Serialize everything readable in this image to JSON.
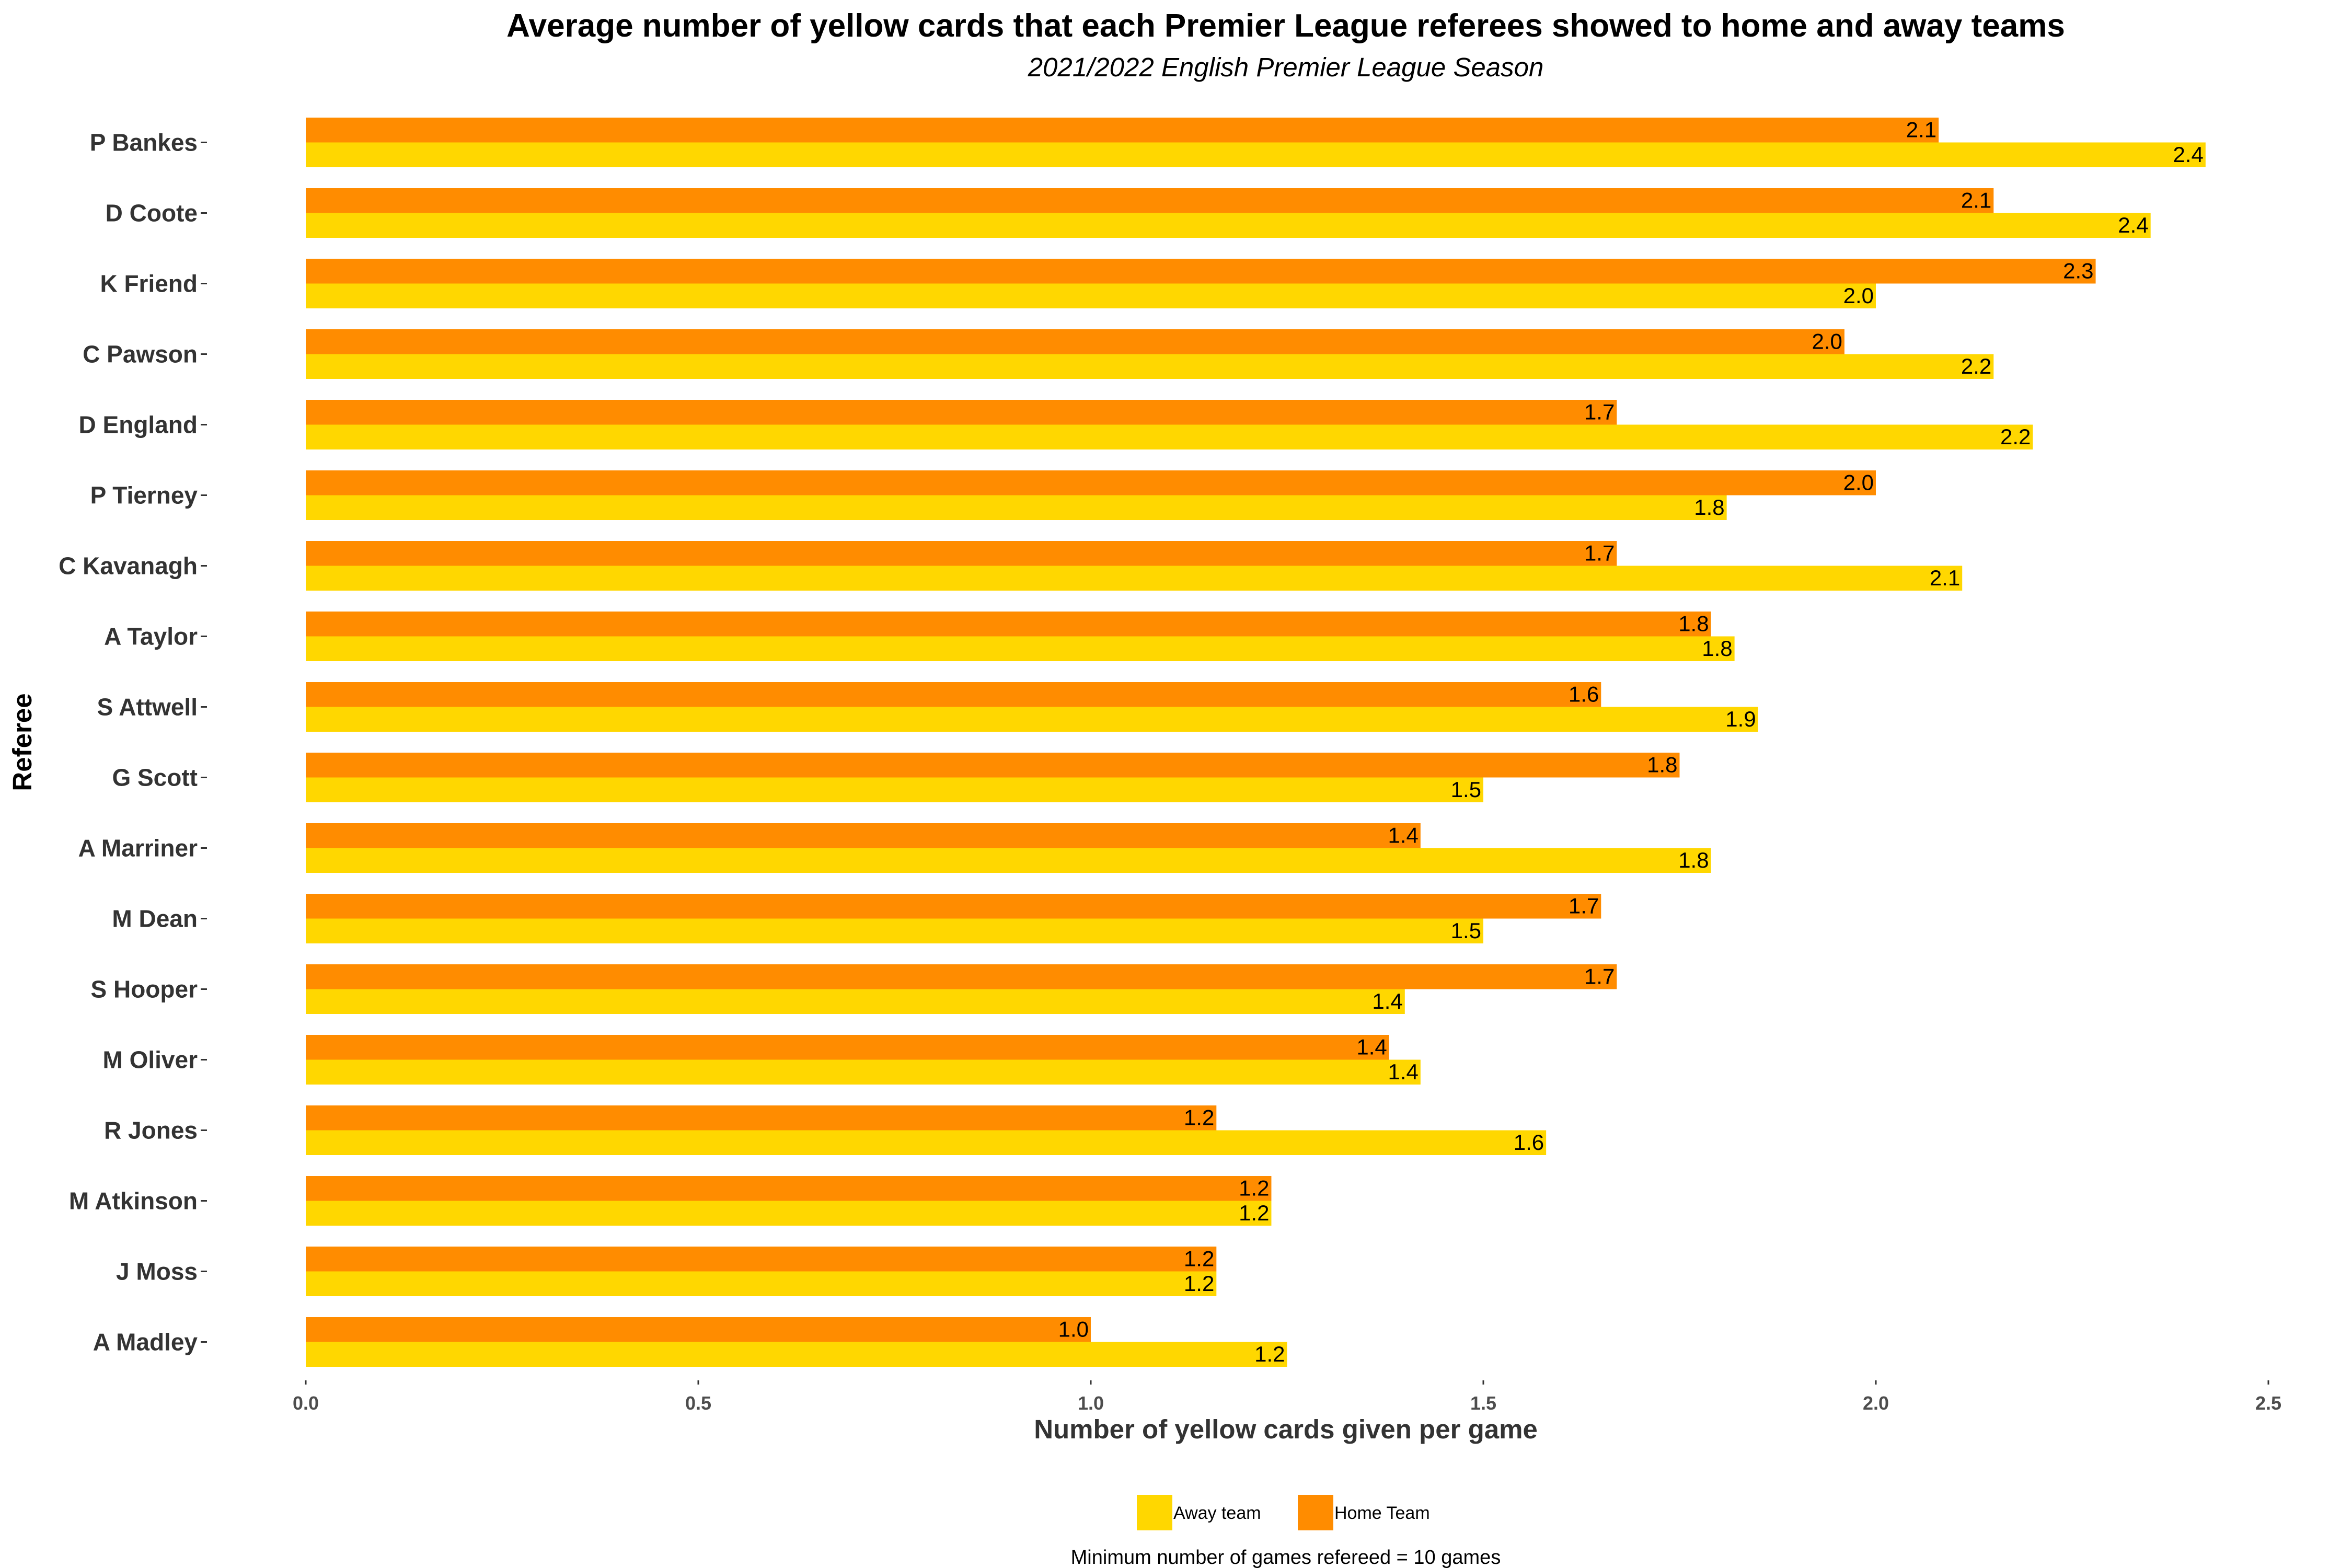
{
  "chart_data": {
    "type": "bar",
    "orientation": "horizontal",
    "title": "Average number of yellow cards that each Premier League referees showed to home and away teams",
    "subtitle": "2021/2022 English Premier League Season",
    "xlabel": "Number of yellow cards given per game",
    "ylabel": "Referee",
    "xlim": [
      0,
      2.5
    ],
    "x_ticks": [
      "0.0",
      "0.5",
      "1.0",
      "1.5",
      "2.0",
      "2.5"
    ],
    "x_tick_values": [
      0,
      0.5,
      1.0,
      1.5,
      2.0,
      2.5
    ],
    "grid": false,
    "legend_position": "bottom",
    "categories": [
      "P Bankes",
      "D Coote",
      "K Friend",
      "C Pawson",
      "D England",
      "P Tierney",
      "C Kavanagh",
      "A Taylor",
      "S Attwell",
      "G Scott",
      "A Marriner",
      "M Dean",
      "S Hooper",
      "M Oliver",
      "R Jones",
      "M Atkinson",
      "J Moss",
      "A Madley"
    ],
    "series": [
      {
        "name": "Home Team",
        "color": "#FF8C00",
        "values": [
          2.08,
          2.15,
          2.28,
          1.96,
          1.67,
          2.0,
          1.67,
          1.79,
          1.65,
          1.75,
          1.42,
          1.65,
          1.67,
          1.38,
          1.16,
          1.23,
          1.16,
          1.0
        ],
        "labels": [
          "2.1",
          "2.1",
          "2.3",
          "2.0",
          "1.7",
          "2.0",
          "1.7",
          "1.8",
          "1.6",
          "1.8",
          "1.4",
          "1.7",
          "1.7",
          "1.4",
          "1.2",
          "1.2",
          "1.2",
          "1.0"
        ]
      },
      {
        "name": "Away team",
        "color": "#FFD700",
        "values": [
          2.42,
          2.35,
          2.0,
          2.15,
          2.2,
          1.81,
          2.11,
          1.82,
          1.85,
          1.5,
          1.79,
          1.5,
          1.4,
          1.42,
          1.58,
          1.23,
          1.16,
          1.25
        ],
        "labels": [
          "2.4",
          "2.4",
          "2.0",
          "2.2",
          "2.2",
          "1.8",
          "2.1",
          "1.8",
          "1.9",
          "1.5",
          "1.8",
          "1.5",
          "1.4",
          "1.4",
          "1.6",
          "1.2",
          "1.2",
          "1.2"
        ]
      }
    ],
    "legend": [
      {
        "name": "Away team",
        "color": "#FFD700"
      },
      {
        "name": "Home Team",
        "color": "#FF8C00"
      }
    ],
    "caption": "Minimum number of games refereed =  10 games"
  }
}
